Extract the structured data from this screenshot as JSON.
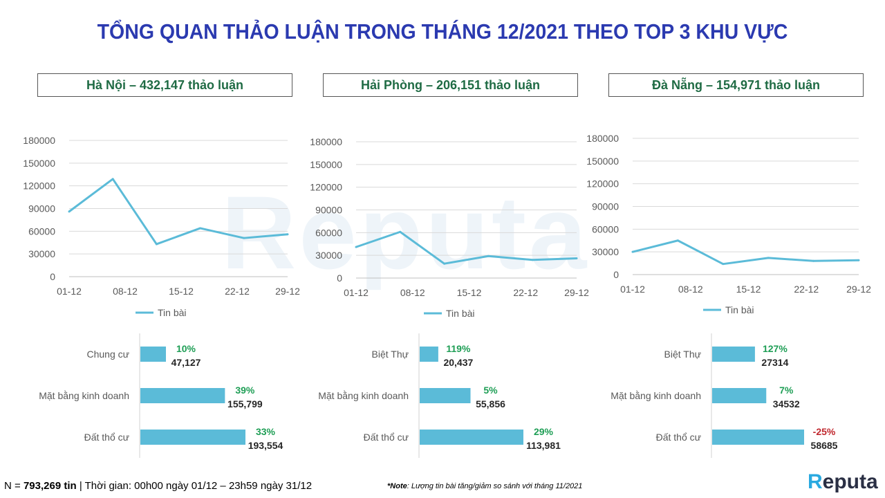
{
  "title": "TỔNG QUAN THẢO LUẬN TRONG THÁNG 12/2021 THEO TOP 3 KHU VỰC",
  "watermark": "Reputa",
  "regions": [
    {
      "header": "Hà Nội – 432,147 thảo luận"
    },
    {
      "header": "Hải Phòng – 206,151 thảo luận"
    },
    {
      "header": "Đà Nẵng – 154,971 thảo luận"
    }
  ],
  "chart_data": [
    {
      "type": "line",
      "x": [
        "01-12",
        "08-12",
        "15-12",
        "22-12",
        "29-12"
      ],
      "yticks": [
        0,
        30000,
        60000,
        90000,
        120000,
        150000,
        180000
      ],
      "ylim": [
        0,
        180000
      ],
      "series": [
        {
          "name": "Tin bài",
          "x": [
            0,
            1,
            2,
            3,
            4,
            5
          ],
          "values": [
            86000,
            129000,
            43000,
            64000,
            51000,
            56000
          ]
        }
      ],
      "legend": "bottom",
      "grid": true,
      "color": "#5bbbd8"
    },
    {
      "type": "line",
      "x": [
        "01-12",
        "08-12",
        "15-12",
        "22-12",
        "29-12"
      ],
      "yticks": [
        0,
        30000,
        60000,
        90000,
        120000,
        150000,
        180000
      ],
      "ylim": [
        0,
        180000
      ],
      "series": [
        {
          "name": "Tin bài",
          "x": [
            0,
            1,
            2,
            3,
            4,
            5
          ],
          "values": [
            41000,
            61000,
            19000,
            29000,
            24000,
            26000
          ]
        }
      ],
      "legend": "bottom",
      "grid": true,
      "color": "#5bbbd8"
    },
    {
      "type": "line",
      "x": [
        "01-12",
        "08-12",
        "15-12",
        "22-12",
        "29-12"
      ],
      "yticks": [
        0,
        30000,
        60000,
        90000,
        120000,
        150000,
        180000
      ],
      "ylim": [
        0,
        180000
      ],
      "series": [
        {
          "name": "Tin bài",
          "x": [
            0,
            1,
            2,
            3,
            4,
            5
          ],
          "values": [
            30000,
            45000,
            14000,
            22000,
            18000,
            19000
          ]
        }
      ],
      "legend": "bottom",
      "grid": true,
      "color": "#5bbbd8"
    },
    {
      "type": "bar",
      "orientation": "horizontal",
      "categories": [
        "Chung cư",
        "Mặt bằng kinh doanh",
        "Đất thổ cư"
      ],
      "values": [
        47127,
        155799,
        193554
      ],
      "labels": [
        "47,127",
        "155,799",
        "193,554"
      ],
      "changes": [
        "10%",
        "39%",
        "33%"
      ],
      "xlim": [
        0,
        200000
      ]
    },
    {
      "type": "bar",
      "orientation": "horizontal",
      "categories": [
        "Biệt Thự",
        "Mặt bằng kinh doanh",
        "Đất thổ cư"
      ],
      "values": [
        20437,
        55856,
        113981
      ],
      "labels": [
        "20,437",
        "55,856",
        "113,981"
      ],
      "changes": [
        "119%",
        "5%",
        "29%"
      ],
      "xlim": [
        0,
        120000
      ]
    },
    {
      "type": "bar",
      "orientation": "horizontal",
      "categories": [
        "Biệt Thự",
        "Mặt bằng kinh doanh",
        "Đất thổ cư"
      ],
      "values": [
        27314,
        34532,
        58685
      ],
      "labels": [
        "27314",
        "34532",
        "58685"
      ],
      "changes": [
        "127%",
        "7%",
        "-25%"
      ],
      "xlim": [
        0,
        62000
      ]
    }
  ],
  "colors": {
    "line": "#5bbbd8",
    "bar": "#5bbbd8",
    "positive": "#1e9e55",
    "negative": "#c0282e",
    "title": "#2b3ab0",
    "header": "#1f6b44"
  },
  "footer": {
    "n_label": "N = ",
    "n_value": "793,269 tin",
    "time": " | Thời gian: 00h00 ngày 01/12 – 23h59 ngày 31/12",
    "note_label": "*Note",
    "note_text": ": Lượng tin bài tăng/giảm so sánh với tháng 11/2021",
    "logo_r": "R",
    "logo_rest": "eputa"
  }
}
